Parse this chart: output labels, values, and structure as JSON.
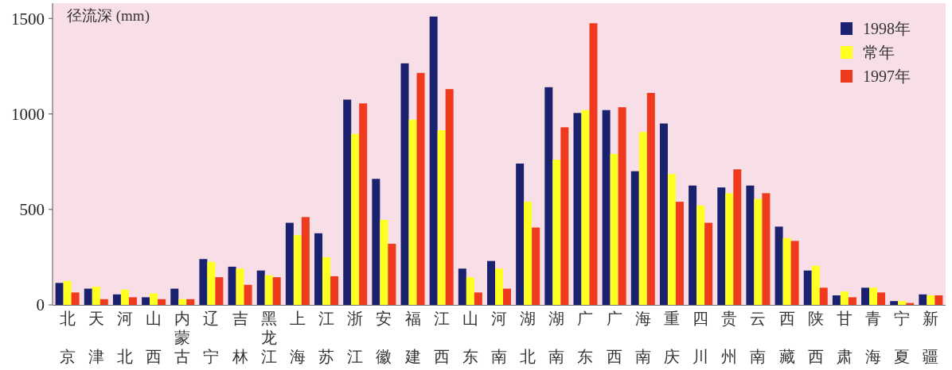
{
  "chart_data": {
    "type": "bar",
    "ylabel": "径流深 (mm)",
    "categories": [
      "北京",
      "天津",
      "河北",
      "山西",
      "内蒙古",
      "辽宁",
      "吉林",
      "黑龙江",
      "上海",
      "江苏",
      "浙江",
      "安徽",
      "福建",
      "江西",
      "山东",
      "河南",
      "湖北",
      "湖南",
      "广东",
      "广西",
      "海南",
      "重庆",
      "四川",
      "贵州",
      "云南",
      "西藏",
      "陕西",
      "甘肃",
      "青海",
      "宁夏",
      "新疆"
    ],
    "series": [
      {
        "name": "1998年",
        "color": "#1a2270",
        "values": [
          115,
          85,
          55,
          40,
          85,
          240,
          200,
          180,
          430,
          375,
          1075,
          660,
          1265,
          1510,
          190,
          230,
          740,
          1140,
          1005,
          1020,
          700,
          950,
          625,
          615,
          625,
          410,
          180,
          50,
          90,
          20,
          55
        ]
      },
      {
        "name": "常年",
        "color": "#ffff22",
        "values": [
          125,
          95,
          80,
          60,
          30,
          225,
          190,
          155,
          365,
          250,
          895,
          445,
          970,
          915,
          145,
          190,
          540,
          760,
          1020,
          790,
          905,
          685,
          520,
          585,
          555,
          350,
          205,
          70,
          90,
          20,
          50
        ]
      },
      {
        "name": "1997年",
        "color": "#f03a1e",
        "values": [
          65,
          30,
          40,
          30,
          30,
          145,
          105,
          145,
          460,
          150,
          1055,
          320,
          1215,
          1130,
          65,
          85,
          405,
          930,
          1475,
          1035,
          1110,
          540,
          430,
          710,
          585,
          335,
          90,
          40,
          65,
          10,
          50
        ]
      }
    ],
    "ylim": [
      0,
      1580
    ],
    "yticks": [
      0,
      500,
      1000,
      1500
    ],
    "grid": false,
    "legend": "top right"
  }
}
